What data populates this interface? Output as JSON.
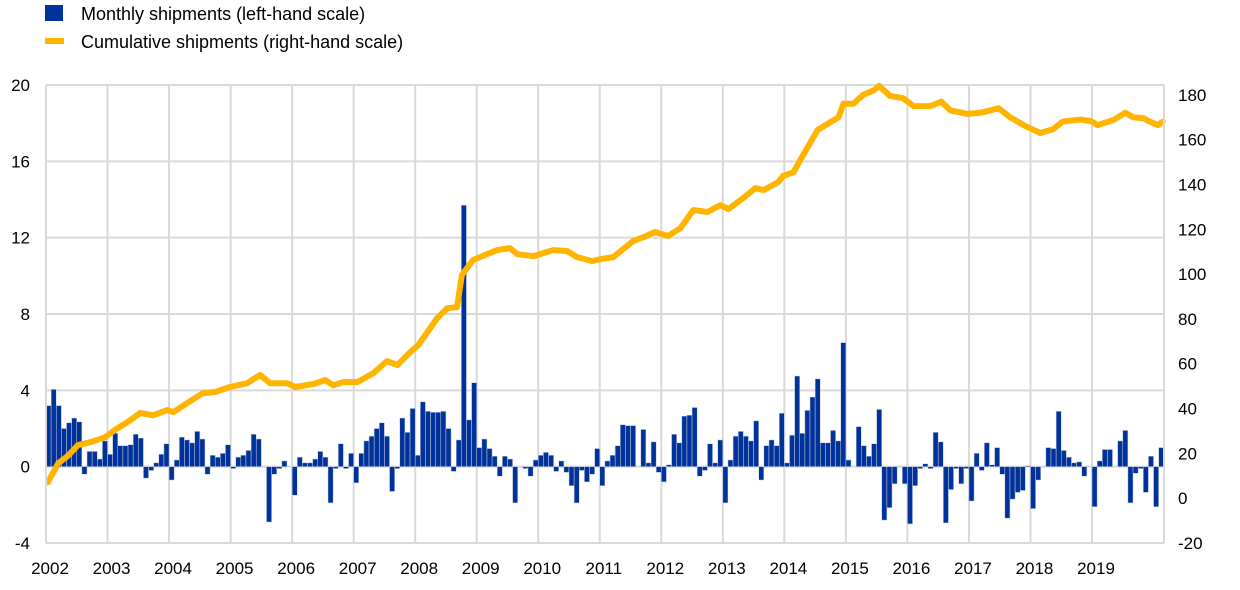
{
  "chart_data": {
    "type": "bar+line",
    "legend": [
      {
        "label": "Monthly shipments (left-hand scale)",
        "kind": "bar",
        "color": "#003299"
      },
      {
        "label": "Cumulative shipments (right-hand scale)",
        "kind": "line",
        "color": "#FFB400"
      }
    ],
    "legend_placement": "top-left",
    "grid": true,
    "x": {
      "start": "2002-01",
      "range_years": [
        2002,
        2020.17
      ],
      "tick_labels": [
        "2002",
        "2003",
        "2004",
        "2005",
        "2006",
        "2007",
        "2008",
        "2009",
        "2010",
        "2011",
        "2012",
        "2013",
        "2014",
        "2015",
        "2016",
        "2017",
        "2018",
        "2019"
      ]
    },
    "left_axis": {
      "ylim": [
        -4,
        20
      ],
      "ticks": [
        "-4",
        "0",
        "4",
        "8",
        "12",
        "16",
        "20"
      ],
      "tick_values": [
        -4,
        0,
        4,
        8,
        12,
        16,
        20
      ]
    },
    "right_axis": {
      "ylim": [
        -20,
        184.4
      ],
      "ticks": [
        "-20",
        "0",
        "20",
        "40",
        "60",
        "80",
        "100",
        "120",
        "140",
        "160",
        "180"
      ],
      "tick_values": [
        -20,
        0,
        20,
        40,
        60,
        80,
        100,
        120,
        140,
        160,
        180
      ]
    },
    "series": [
      {
        "name": "Monthly shipments (left-hand scale)",
        "axis": "left",
        "type": "bar",
        "color": "#003299",
        "values": [
          3.2,
          4.05,
          3.2,
          2.0,
          2.3,
          2.55,
          2.35,
          -0.4,
          0.8,
          0.8,
          0.4,
          1.35,
          0.65,
          1.75,
          1.1,
          1.1,
          1.15,
          1.7,
          1.5,
          -0.6,
          -0.2,
          0.2,
          0.65,
          1.2,
          -0.7,
          0.35,
          1.55,
          1.4,
          1.25,
          1.85,
          1.45,
          -0.4,
          0.6,
          0.5,
          0.7,
          1.15,
          -0.1,
          0.5,
          0.6,
          0.85,
          1.7,
          1.45,
          0,
          -2.9,
          -0.4,
          -0.1,
          0.3,
          0,
          -1.5,
          0.5,
          0.2,
          0.2,
          0.4,
          0.8,
          0.5,
          -1.9,
          -0.1,
          1.2,
          -0.1,
          0.7,
          -0.85,
          0.7,
          1.35,
          1.6,
          2.0,
          2.3,
          1.6,
          -1.3,
          -0.1,
          2.55,
          1.8,
          3.05,
          0.6,
          3.4,
          2.9,
          2.85,
          2.85,
          2.9,
          2.0,
          -0.25,
          1.4,
          13.7,
          2.45,
          4.4,
          1.0,
          1.45,
          0.95,
          0.55,
          -0.5,
          0.55,
          0.4,
          -1.9,
          0,
          -0.1,
          -0.5,
          0.35,
          0.6,
          0.75,
          0.6,
          -0.25,
          0.3,
          -0.3,
          -1.0,
          -1.9,
          -0.2,
          -0.8,
          -0.4,
          0.95,
          -1.0,
          0.3,
          0.6,
          1.1,
          2.2,
          2.15,
          2.15,
          0,
          1.95,
          0.2,
          1.3,
          -0.3,
          -0.8,
          0.1,
          1.7,
          1.25,
          2.65,
          2.7,
          3.1,
          -0.5,
          -0.2,
          1.2,
          0.2,
          1.4,
          -1.9,
          0.35,
          1.6,
          1.85,
          1.6,
          1.35,
          2.4,
          -0.7,
          1.1,
          1.4,
          1.1,
          2.8,
          0.2,
          1.65,
          4.75,
          1.75,
          2.95,
          3.65,
          4.6,
          1.25,
          1.25,
          1.9,
          1.35,
          6.5,
          0.35,
          0,
          2.1,
          1.1,
          0.55,
          1.2,
          3.0,
          -2.8,
          -2.15,
          -0.9,
          0,
          -0.9,
          -3.0,
          -1.0,
          -0.1,
          0.15,
          -0.1,
          1.8,
          1.3,
          -2.95,
          -1.2,
          -0.1,
          -0.9,
          -0.1,
          -1.8,
          0.7,
          -0.2,
          1.25,
          0.1,
          1.0,
          -0.4,
          -2.7,
          -1.7,
          -1.35,
          -1.25,
          0.05,
          -2.2,
          -0.7,
          0,
          1.0,
          0.95,
          2.9,
          0.85,
          0.5,
          0.2,
          0.25,
          -0.5,
          0,
          -2.1,
          0.3,
          0.9,
          0.9,
          0,
          1.35,
          1.9,
          -1.9,
          -0.35,
          -0.1,
          -1.35,
          0.55,
          -2.1,
          1.0
        ]
      },
      {
        "name": "Cumulative shipments (right-hand scale)",
        "axis": "right",
        "type": "line",
        "color": "#FFB400",
        "points": [
          [
            2002.03,
            7.1
          ],
          [
            2002.2,
            15.6
          ],
          [
            2002.36,
            19
          ],
          [
            2002.52,
            23.7
          ],
          [
            2002.72,
            25
          ],
          [
            2002.96,
            27.2
          ],
          [
            2003.15,
            31
          ],
          [
            2003.37,
            34.8
          ],
          [
            2003.53,
            38
          ],
          [
            2003.74,
            37
          ],
          [
            2003.97,
            39.3
          ],
          [
            2004.07,
            38.4
          ],
          [
            2004.29,
            42.4
          ],
          [
            2004.55,
            46.9
          ],
          [
            2004.75,
            47.4
          ],
          [
            2004.99,
            49.6
          ],
          [
            2005.27,
            51.3
          ],
          [
            2005.48,
            55
          ],
          [
            2005.64,
            51.3
          ],
          [
            2005.92,
            51.3
          ],
          [
            2006.05,
            49.6
          ],
          [
            2006.34,
            50.9
          ],
          [
            2006.54,
            52.7
          ],
          [
            2006.67,
            50.4
          ],
          [
            2006.83,
            51.8
          ],
          [
            2007.06,
            51.8
          ],
          [
            2007.32,
            55.8
          ],
          [
            2007.54,
            61.2
          ],
          [
            2007.71,
            59.4
          ],
          [
            2007.92,
            65.2
          ],
          [
            2008.05,
            68.3
          ],
          [
            2008.36,
            80.4
          ],
          [
            2008.52,
            84.8
          ],
          [
            2008.68,
            85.3
          ],
          [
            2008.76,
            99.6
          ],
          [
            2008.94,
            106.3
          ],
          [
            2009.33,
            110.7
          ],
          [
            2009.54,
            111.6
          ],
          [
            2009.66,
            108.9
          ],
          [
            2009.92,
            108
          ],
          [
            2010.24,
            110.7
          ],
          [
            2010.47,
            110.3
          ],
          [
            2010.63,
            107.6
          ],
          [
            2010.88,
            105.8
          ],
          [
            2011.01,
            106.7
          ],
          [
            2011.22,
            107.6
          ],
          [
            2011.54,
            114.7
          ],
          [
            2011.71,
            116.5
          ],
          [
            2011.9,
            118.8
          ],
          [
            2012.11,
            117
          ],
          [
            2012.31,
            120.5
          ],
          [
            2012.52,
            128.6
          ],
          [
            2012.75,
            127.7
          ],
          [
            2012.96,
            130.8
          ],
          [
            2013.09,
            129
          ],
          [
            2013.33,
            133.9
          ],
          [
            2013.53,
            138.4
          ],
          [
            2013.66,
            137.5
          ],
          [
            2013.9,
            141
          ],
          [
            2013.98,
            143.8
          ],
          [
            2014.15,
            145.5
          ],
          [
            2014.26,
            151
          ],
          [
            2014.54,
            164.3
          ],
          [
            2014.88,
            170
          ],
          [
            2014.96,
            176
          ],
          [
            2015.12,
            176
          ],
          [
            2015.28,
            180
          ],
          [
            2015.45,
            182
          ],
          [
            2015.54,
            184
          ],
          [
            2015.72,
            179.5
          ],
          [
            2015.93,
            178.5
          ],
          [
            2016.1,
            175
          ],
          [
            2016.37,
            175
          ],
          [
            2016.55,
            177
          ],
          [
            2016.7,
            173
          ],
          [
            2016.98,
            171.5
          ],
          [
            2017.19,
            172
          ],
          [
            2017.48,
            174
          ],
          [
            2017.67,
            170
          ],
          [
            2017.92,
            166
          ],
          [
            2018.16,
            163
          ],
          [
            2018.37,
            164.7
          ],
          [
            2018.52,
            168
          ],
          [
            2018.81,
            169
          ],
          [
            2018.98,
            168.3
          ],
          [
            2019.09,
            166.5
          ],
          [
            2019.35,
            168.8
          ],
          [
            2019.54,
            172
          ],
          [
            2019.67,
            170
          ],
          [
            2019.84,
            169.6
          ],
          [
            2019.92,
            168.3
          ],
          [
            2020.07,
            166.5
          ],
          [
            2020.15,
            168
          ]
        ]
      }
    ]
  }
}
